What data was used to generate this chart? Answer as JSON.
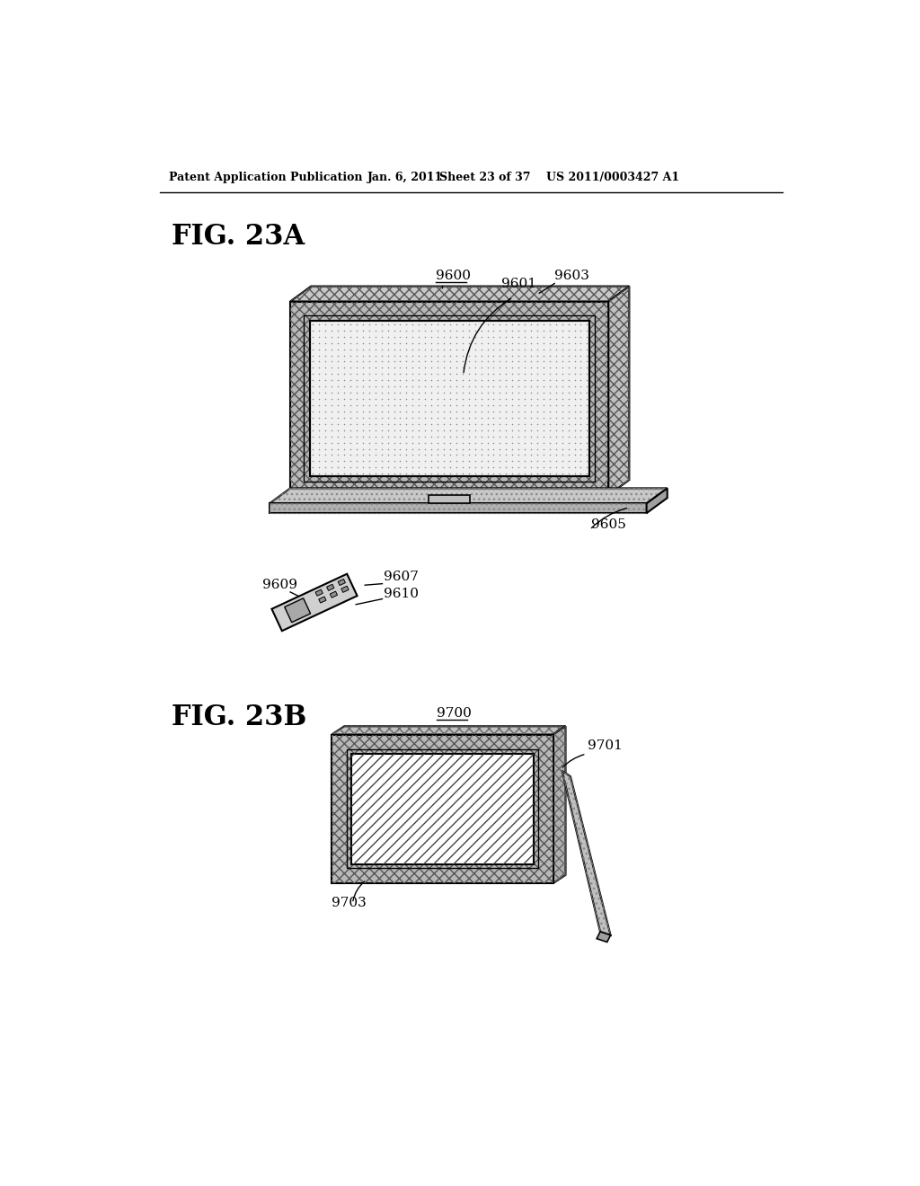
{
  "bg_color": "#ffffff",
  "header_text": "Patent Application Publication",
  "header_date": "Jan. 6, 2011",
  "header_sheet": "Sheet 23 of 37",
  "header_patent": "US 2011/0003427 A1",
  "fig23a_label": "FIG. 23A",
  "fig23b_label": "FIG. 23B",
  "label_9600": "9600",
  "label_9601": "9601",
  "label_9603": "9603",
  "label_9605": "9605",
  "label_9607": "9607",
  "label_9609": "9609",
  "label_9610": "9610",
  "label_9700": "9700",
  "label_9701": "9701",
  "label_9703": "9703"
}
